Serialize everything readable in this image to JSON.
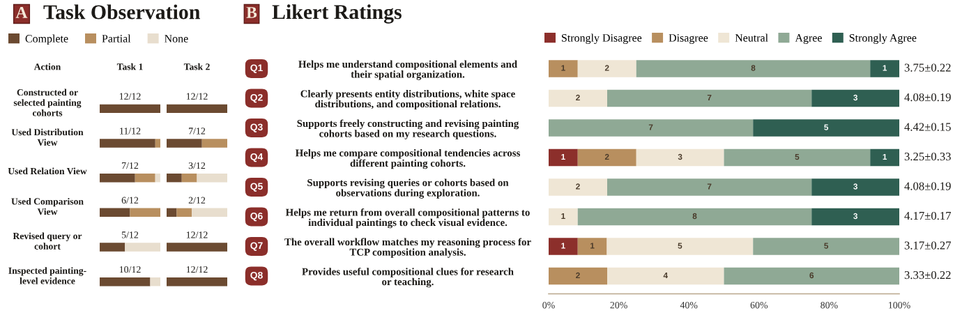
{
  "chart_data": [
    {
      "type": "bar",
      "orientation": "horizontal",
      "stacked": true,
      "title": "Task Observation",
      "annotations": [
        "A"
      ],
      "xlabel": "Task 1",
      "ylabel": "Action",
      "categories": [
        "Constructed or\nselected painting\ncohorts",
        "Used Distribution\nView",
        "Used Relation View",
        "Used Comparison\nView",
        "Revised query or\ncohort",
        "Inspected painting-\nlevel evidence"
      ],
      "series": [
        {
          "name": "Complete",
          "color": "#6b4a31",
          "values": [
            1,
            0.917,
            0.583,
            0.5,
            0.417,
            0.833
          ],
          "value_labels": [
            "12/12",
            "11/12",
            "7/12",
            "6/12",
            "5/12",
            "10/12"
          ]
        },
        {
          "name": "Partial",
          "color": "#b88f5f",
          "values": [
            null,
            0.083,
            0.333,
            0.5,
            null,
            null
          ]
        },
        {
          "name": "None",
          "color": "#e8dece",
          "values": [
            null,
            null,
            0.083,
            null,
            0.583,
            0.167
          ]
        }
      ],
      "xlim": [
        0,
        1
      ],
      "legend": "top left",
      "tick_labels": "y"
    },
    {
      "type": "bar",
      "orientation": "horizontal",
      "stacked": true,
      "xlabel": "Task 2",
      "categories": [
        null,
        null,
        null,
        null,
        null,
        null
      ],
      "series": [
        {
          "color": "#6b4a31",
          "values": [
            1,
            0.583,
            0.25,
            0.167,
            1,
            1
          ],
          "value_labels": [
            "12/12",
            "7/12",
            "3/12",
            "2/12",
            "12/12",
            "12/12"
          ]
        },
        {
          "color": "#b88f5f",
          "values": [
            null,
            0.417,
            0.25,
            0.25,
            null,
            null
          ]
        },
        {
          "color": "#e8dece",
          "values": [
            null,
            null,
            0.5,
            0.583,
            null,
            null
          ]
        }
      ],
      "xlim": [
        0,
        1
      ],
      "tick_labels": false
    },
    {
      "type": "bar",
      "orientation": "horizontal",
      "stacked": true,
      "title": "Likert Ratings",
      "annotations": [
        "B",
        "Q1",
        "Q2",
        "Q3",
        "Q4",
        "Q5",
        "Q6",
        "Q7",
        "Q8",
        "3.75±0.22",
        "4.08±0.19",
        "4.42±0.15",
        "3.25±0.33",
        "4.08±0.19",
        "4.17±0.17",
        "3.17±0.27",
        "3.33±0.22",
        "1",
        "2",
        "8",
        "1",
        "2",
        "7",
        "3",
        "7",
        "5",
        "1",
        "2",
        "3",
        "5",
        "1",
        "2",
        "7",
        "3",
        "1",
        "8",
        "3",
        "1",
        "1",
        "5",
        "5",
        "2",
        "4",
        "6"
      ],
      "categories": [
        "Helps me understand compositional elements and\ntheir spatial organization.",
        "Clearly presents entity distributions, white space\ndistributions, and compositional relations.",
        "Supports freely constructing and revising painting\ncohorts based on my research questions.",
        "Helps me compare compositional tendencies across\ndifferent painting cohorts.",
        "Supports revising queries or cohorts based on\nobservations during exploration.",
        "Helps me return from overall compositional patterns to\nindividual paintings to check visual evidence.",
        "The overall workflow matches my reasoning process for\nTCP composition analysis.",
        "Provides useful compositional clues for research\nor teaching."
      ],
      "series": [
        {
          "name": "Strongly Disagree",
          "color": "#8c2f2b",
          "values": [
            null,
            null,
            null,
            8.3,
            null,
            null,
            8.3,
            null
          ]
        },
        {
          "name": "Disagree",
          "color": "#b88f5f",
          "values": [
            8.3,
            null,
            null,
            16.7,
            null,
            null,
            8.3,
            16.7
          ]
        },
        {
          "name": "Neutral",
          "color": "#efe6d5",
          "values": [
            16.7,
            16.7,
            null,
            25,
            16.7,
            8.3,
            41.7,
            33.3
          ]
        },
        {
          "name": "Agree",
          "color": "#8fa995",
          "values": [
            66.7,
            58.3,
            58.3,
            41.7,
            58.3,
            66.7,
            41.7,
            50
          ]
        },
        {
          "name": "Strongly Agree",
          "color": "#2f5f52",
          "values": [
            8.3,
            25,
            41.7,
            8.3,
            25,
            25,
            null,
            null
          ]
        }
      ],
      "xlim": [
        0,
        100
      ],
      "xticks": [
        {
          "value": 0,
          "label": "0%"
        },
        {
          "value": 20,
          "label": "20%"
        },
        {
          "value": 40,
          "label": "40%"
        },
        {
          "value": 60,
          "label": "60%"
        },
        {
          "value": 80,
          "label": "80%"
        },
        {
          "value": 100,
          "label": "100%"
        }
      ],
      "legend": "top"
    }
  ]
}
